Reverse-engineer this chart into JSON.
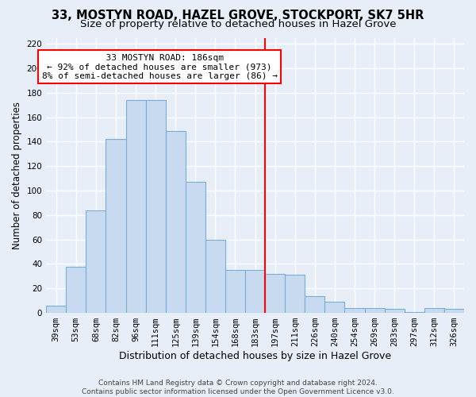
{
  "title": "33, MOSTYN ROAD, HAZEL GROVE, STOCKPORT, SK7 5HR",
  "subtitle": "Size of property relative to detached houses in Hazel Grove",
  "xlabel": "Distribution of detached houses by size in Hazel Grove",
  "ylabel": "Number of detached properties",
  "bins": [
    "39sqm",
    "53sqm",
    "68sqm",
    "82sqm",
    "96sqm",
    "111sqm",
    "125sqm",
    "139sqm",
    "154sqm",
    "168sqm",
    "183sqm",
    "197sqm",
    "211sqm",
    "226sqm",
    "240sqm",
    "254sqm",
    "269sqm",
    "283sqm",
    "297sqm",
    "312sqm",
    "326sqm"
  ],
  "values": [
    6,
    38,
    84,
    142,
    174,
    174,
    149,
    107,
    60,
    35,
    35,
    32,
    31,
    14,
    9,
    4,
    4,
    3,
    1,
    4,
    3
  ],
  "bar_color": "#c8daf0",
  "bar_edge_color": "#7aadd4",
  "vline_color": "red",
  "annotation_title": "33 MOSTYN ROAD: 186sqm",
  "annotation_line1": "← 92% of detached houses are smaller (973)",
  "annotation_line2": "8% of semi-detached houses are larger (86) →",
  "annotation_box_color": "white",
  "annotation_box_edge_color": "red",
  "ylim": [
    0,
    225
  ],
  "yticks": [
    0,
    20,
    40,
    60,
    80,
    100,
    120,
    140,
    160,
    180,
    200,
    220
  ],
  "footer1": "Contains HM Land Registry data © Crown copyright and database right 2024.",
  "footer2": "Contains public sector information licensed under the Open Government Licence v3.0.",
  "title_fontsize": 10.5,
  "subtitle_fontsize": 9.5,
  "xlabel_fontsize": 9,
  "ylabel_fontsize": 8.5,
  "tick_fontsize": 7.5,
  "annotation_fontsize": 8,
  "footer_fontsize": 6.5,
  "background_color": "#e8eef8"
}
